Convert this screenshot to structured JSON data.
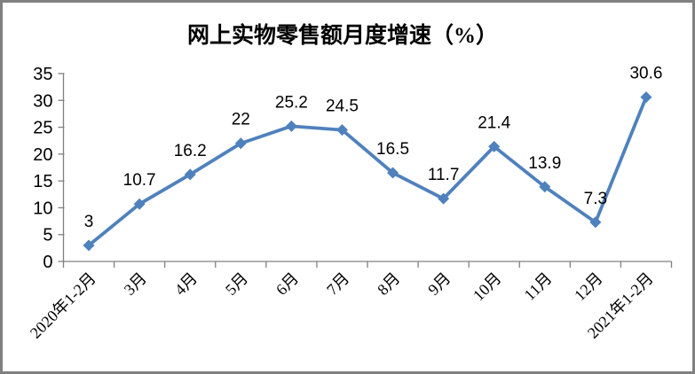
{
  "chart": {
    "title": "网上实物零售额月度增速（%）"
  },
  "chart_data": {
    "type": "line",
    "title": "网上实物零售额月度增速（%）",
    "categories": [
      "2020年1-2月",
      "3月",
      "4月",
      "5月",
      "6月",
      "7月",
      "8月",
      "9月",
      "10月",
      "11月",
      "12月",
      "2021年1-2月"
    ],
    "series": [
      {
        "name": "网上实物零售额月度增速",
        "values": [
          3,
          10.7,
          16.2,
          22,
          25.2,
          24.5,
          16.5,
          11.7,
          21.4,
          13.9,
          7.3,
          30.6
        ]
      }
    ],
    "data_labels": [
      "3",
      "10.7",
      "16.2",
      "22",
      "25.2",
      "24.5",
      "16.5",
      "11.7",
      "21.4",
      "13.9",
      "7.3",
      "30.6"
    ],
    "xlabel": "",
    "ylabel": "",
    "ylim": [
      0,
      35
    ],
    "y_ticks": [
      0,
      5,
      10,
      15,
      20,
      25,
      30,
      35
    ],
    "grid": false,
    "legend": "none",
    "x_label_rotation_deg": 45,
    "line_color": "#4f81bd",
    "marker": "diamond",
    "axis_color": "#808080",
    "text_color": "#000000",
    "background": "#ffffff",
    "frame_border_color": "#808080"
  }
}
